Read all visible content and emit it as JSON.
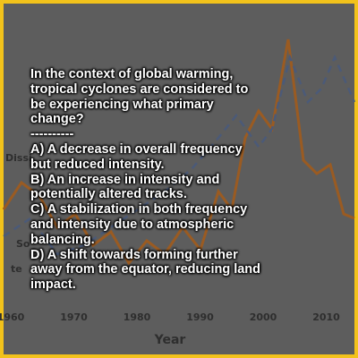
{
  "question": "In the context of global warming, tropical cyclones are considered to be experiencing what primary change?",
  "separator": "----------",
  "options": [
    "A) A decrease in overall frequency but reduced intensity.",
    "B) An increase in intensity and potentially altered tracks.",
    "C) A stabilization in both frequency and intensity due to atmospheric balancing.",
    "D) A shift towards forming further away from the equator, reducing land impact."
  ],
  "background": {
    "xticks": [
      "1960",
      "1970",
      "1980",
      "1990",
      "2000",
      "2010"
    ],
    "xlabel": "Year",
    "fragments": [
      "Dissi",
      "So",
      "te"
    ]
  }
}
